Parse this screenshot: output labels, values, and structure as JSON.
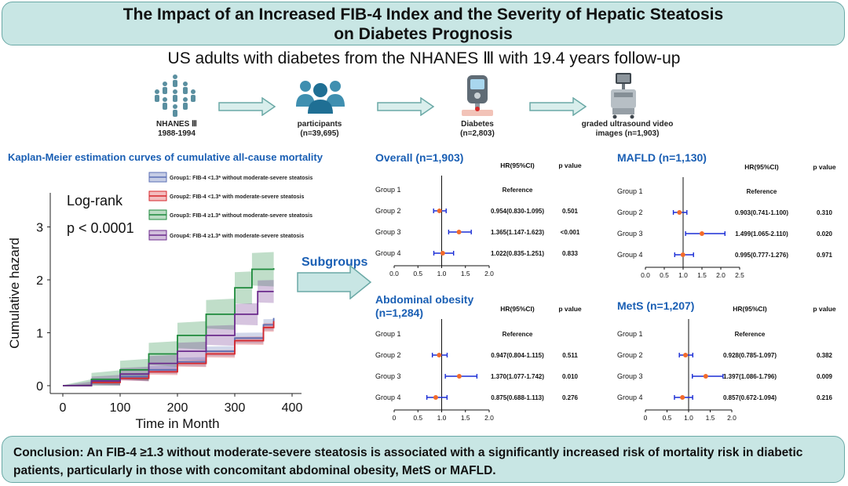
{
  "header": {
    "title_line1": "The Impact of an Increased FIB-4 Index and the Severity of Hepatic Steatosis",
    "title_line2": "on Diabetes Prognosis",
    "subtitle": "US adults with diabetes from the  NHANES Ⅲ with 19.4 years follow-up"
  },
  "flow": {
    "nhanes": {
      "label": "NHANES Ⅲ",
      "sub": "1988-1994"
    },
    "participants": {
      "label": "participants",
      "sub": "(n=39,695)"
    },
    "diabetes": {
      "label": "Diabetes",
      "sub": "(n=2,803)"
    },
    "ultrasound": {
      "label": "graded ultrasound video",
      "sub": "images  (n=1,903)"
    }
  },
  "km": {
    "section_title": "Kaplan-Meier estimation curves of cumulative all-cause mortality",
    "annotation_line1": "Log-rank",
    "annotation_line2": "p < 0.0001",
    "y_label": "Cumulative hazard",
    "x_label": "Time in Month",
    "x_ticks": [
      "0",
      "100",
      "200",
      "300",
      "400"
    ],
    "y_ticks": [
      "0",
      "1",
      "2",
      "3"
    ],
    "legend": [
      "Group1: FIB-4 <1.3* without moderate-severe steatosis",
      "Group2: FIB-4 <1.3* with moderate-severe steatosis",
      "Group3: FIB-4 ≥1.3* without moderate-severe steatosis",
      "Group4: FIB-4 ≥1.3* with moderate-severe steatosis"
    ]
  },
  "subgroups_label": "Subgroups",
  "colors": {
    "title_fill": "#c8e6e4",
    "group1": "#5b6fb5",
    "group2": "#d7262b",
    "group3": "#1e8a3c",
    "group4": "#6b2a8c",
    "hr_point": "#f26b2b",
    "ci_line": "#1c2fd6",
    "heading_blue": "#1a5fb4"
  },
  "forest_common": {
    "hr_header": "HR(95%CI)",
    "p_header": "p value",
    "groups": [
      "Group 1",
      "Group 2",
      "Group 3",
      "Group 4"
    ],
    "reference": "Reference"
  },
  "chart_data": [
    {
      "type": "line",
      "title": "Kaplan-Meier estimation curves of cumulative all-cause mortality",
      "xlabel": "Time in Month",
      "ylabel": "Cumulative hazard",
      "xlim": [
        0,
        400
      ],
      "ylim": [
        0,
        3.3
      ],
      "series": [
        {
          "name": "Group1: FIB-4 <1.3* without moderate-severe steatosis",
          "x": [
            0,
            50,
            100,
            150,
            200,
            250,
            300,
            350,
            368
          ],
          "y": [
            0,
            0.07,
            0.17,
            0.3,
            0.45,
            0.65,
            0.9,
            1.15,
            1.28
          ]
        },
        {
          "name": "Group2: FIB-4 <1.3* with moderate-severe steatosis",
          "x": [
            0,
            50,
            100,
            150,
            200,
            250,
            300,
            350,
            368
          ],
          "y": [
            0,
            0.06,
            0.14,
            0.26,
            0.42,
            0.6,
            0.85,
            1.1,
            1.22
          ]
        },
        {
          "name": "Group3: FIB-4 ≥1.3* without moderate-severe steatosis",
          "x": [
            0,
            50,
            100,
            150,
            200,
            250,
            300,
            330,
            368
          ],
          "y": [
            0,
            0.12,
            0.3,
            0.6,
            0.95,
            1.35,
            1.85,
            2.2,
            2.22
          ]
        },
        {
          "name": "Group4: FIB-4 ≥1.3* with moderate-severe steatosis",
          "x": [
            0,
            50,
            100,
            150,
            200,
            250,
            300,
            340,
            368
          ],
          "y": [
            0,
            0.09,
            0.22,
            0.42,
            0.65,
            0.95,
            1.35,
            1.78,
            1.78
          ]
        }
      ]
    },
    {
      "type": "scatter",
      "title": "Overall (n=1,903)",
      "xlim": [
        0,
        2
      ],
      "x_ticks": [
        "0.0",
        "0.5",
        "1.0",
        "1.5",
        "2.0"
      ],
      "rows": [
        {
          "group": "Group 1",
          "hr": null,
          "text": "Reference",
          "p": ""
        },
        {
          "group": "Group 2",
          "hr": 0.954,
          "lo": 0.83,
          "hi": 1.095,
          "text": "0.954(0.830-1.095)",
          "p": "0.501"
        },
        {
          "group": "Group 3",
          "hr": 1.365,
          "lo": 1.147,
          "hi": 1.623,
          "text": "1.365(1.147-1.623)",
          "p": "<0.001"
        },
        {
          "group": "Group 4",
          "hr": 1.022,
          "lo": 0.835,
          "hi": 1.251,
          "text": "1.022(0.835-1.251)",
          "p": "0.833"
        }
      ]
    },
    {
      "type": "scatter",
      "title": "MAFLD (n=1,130)",
      "xlim": [
        0,
        2.5
      ],
      "x_ticks": [
        "0.0",
        "0.5",
        "1.0",
        "1.5",
        "2.0",
        "2.5"
      ],
      "rows": [
        {
          "group": "Group 1",
          "hr": null,
          "text": "Reference",
          "p": ""
        },
        {
          "group": "Group 2",
          "hr": 0.903,
          "lo": 0.741,
          "hi": 1.1,
          "text": "0.903(0.741-1.100)",
          "p": "0.310"
        },
        {
          "group": "Group 3",
          "hr": 1.499,
          "lo": 1.065,
          "hi": 2.11,
          "text": "1.499(1.065-2.110)",
          "p": "0.020"
        },
        {
          "group": "Group 4",
          "hr": 0.995,
          "lo": 0.777,
          "hi": 1.276,
          "text": "0.995(0.777-1.276)",
          "p": "0.971"
        }
      ]
    },
    {
      "type": "scatter",
      "title": "Abdominal obesity (n=1,284)",
      "xlim": [
        0,
        2
      ],
      "x_ticks": [
        "0",
        "0.5",
        "1.0",
        "1.5",
        "2.0"
      ],
      "rows": [
        {
          "group": "Group 1",
          "hr": null,
          "text": "Reference",
          "p": ""
        },
        {
          "group": "Group 2",
          "hr": 0.947,
          "lo": 0.804,
          "hi": 1.115,
          "text": "0.947(0.804-1.115)",
          "p": "0.511"
        },
        {
          "group": "Group 3",
          "hr": 1.37,
          "lo": 1.077,
          "hi": 1.742,
          "text": "1.370(1.077-1.742)",
          "p": "0.010"
        },
        {
          "group": "Group 4",
          "hr": 0.875,
          "lo": 0.688,
          "hi": 1.113,
          "text": "0.875(0.688-1.113)",
          "p": "0.276"
        }
      ]
    },
    {
      "type": "scatter",
      "title": "MetS (n=1,207)",
      "xlim": [
        0,
        2
      ],
      "x_ticks": [
        "0",
        "0.5",
        "1.0",
        "1.5",
        "2.0"
      ],
      "rows": [
        {
          "group": "Group 1",
          "hr": null,
          "text": "Reference",
          "p": ""
        },
        {
          "group": "Group 2",
          "hr": 0.928,
          "lo": 0.785,
          "hi": 1.097,
          "text": "0.928(0.785-1.097)",
          "p": "0.382"
        },
        {
          "group": "Group 3",
          "hr": 1.397,
          "lo": 1.086,
          "hi": 1.796,
          "text": "1.397(1.086-1.796)",
          "p": "0.009"
        },
        {
          "group": "Group 4",
          "hr": 0.857,
          "lo": 0.672,
          "hi": 1.094,
          "text": "0.857(0.672-1.094)",
          "p": "0.216"
        }
      ]
    }
  ],
  "conclusion": {
    "line1": "Conclusion: An FIB-4 ≥1.3 without moderate-severe steatosis is associated with a significantly increased risk of mortality risk in diabetic",
    "line2": "patients, particularly in those with concomitant abdominal obesity, MetS or MAFLD."
  }
}
